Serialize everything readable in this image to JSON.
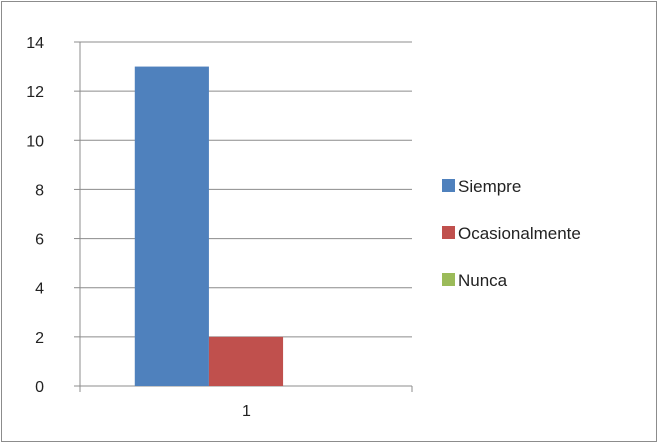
{
  "chart_data": {
    "type": "bar",
    "categories": [
      "1"
    ],
    "series": [
      {
        "name": "Siempre",
        "values": [
          13
        ],
        "color": "#4F81BD"
      },
      {
        "name": "Ocasionalmente",
        "values": [
          2
        ],
        "color": "#C0504D"
      },
      {
        "name": "Nunca",
        "values": [
          0
        ],
        "color": "#9BBB59"
      }
    ],
    "ylim": [
      0,
      14
    ],
    "yticks": [
      0,
      2,
      4,
      6,
      8,
      10,
      12,
      14
    ],
    "grid": true,
    "legend_position": "right"
  }
}
